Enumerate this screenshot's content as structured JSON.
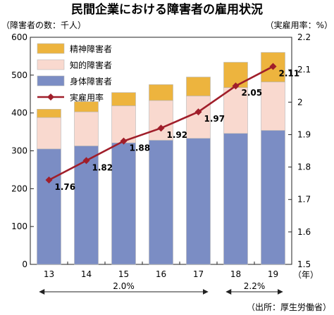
{
  "chart_data": {
    "type": "bar",
    "title": "民間企業における障害者の雇用状況",
    "left_unit": "（障害者の数：千人）",
    "right_unit": "（実雇用率：%）",
    "x_unit": "（年）",
    "source": "（出所：厚生労働省）",
    "categories": [
      "13",
      "14",
      "15",
      "16",
      "17",
      "18",
      "19"
    ],
    "series": [
      {
        "name": "身体障害者",
        "type": "bar",
        "axis": "left",
        "color": "#7b8dc4",
        "values": [
          305,
          313,
          321,
          328,
          333,
          346,
          354
        ]
      },
      {
        "name": "知的障害者",
        "type": "bar",
        "axis": "left",
        "color": "#f9d9cf",
        "values": [
          83,
          90,
          98,
          105,
          112,
          121,
          128
        ]
      },
      {
        "name": "精神障害者",
        "type": "bar",
        "axis": "left",
        "color": "#edb43e",
        "values": [
          22,
          27,
          35,
          42,
          50,
          67,
          78
        ]
      },
      {
        "name": "実雇用率",
        "type": "line",
        "axis": "right",
        "color": "#a01e2a",
        "values": [
          1.76,
          1.82,
          1.88,
          1.92,
          1.97,
          2.05,
          2.11
        ],
        "labels": [
          "1.76",
          "1.82",
          "1.88",
          "1.92",
          "1.97",
          "2.05",
          "2.11"
        ]
      }
    ],
    "legend_order": [
      "精神障害者",
      "知的障害者",
      "身体障害者",
      "実雇用率"
    ],
    "legend_position": "top-left",
    "left_axis": {
      "min": 0,
      "max": 600,
      "ticks": [
        "0",
        "100",
        "200",
        "300",
        "400",
        "500",
        "600"
      ]
    },
    "right_axis": {
      "min": 1.5,
      "max": 2.2,
      "ticks": [
        "1.5",
        "1.6",
        "1.7",
        "1.8",
        "1.9",
        "2",
        "2.1",
        "2.2"
      ]
    },
    "grid": false,
    "annotations": [
      {
        "text": "2.0%",
        "from": "13",
        "to": "17"
      },
      {
        "text": "2.2%",
        "from": "18",
        "to": "19"
      }
    ]
  }
}
